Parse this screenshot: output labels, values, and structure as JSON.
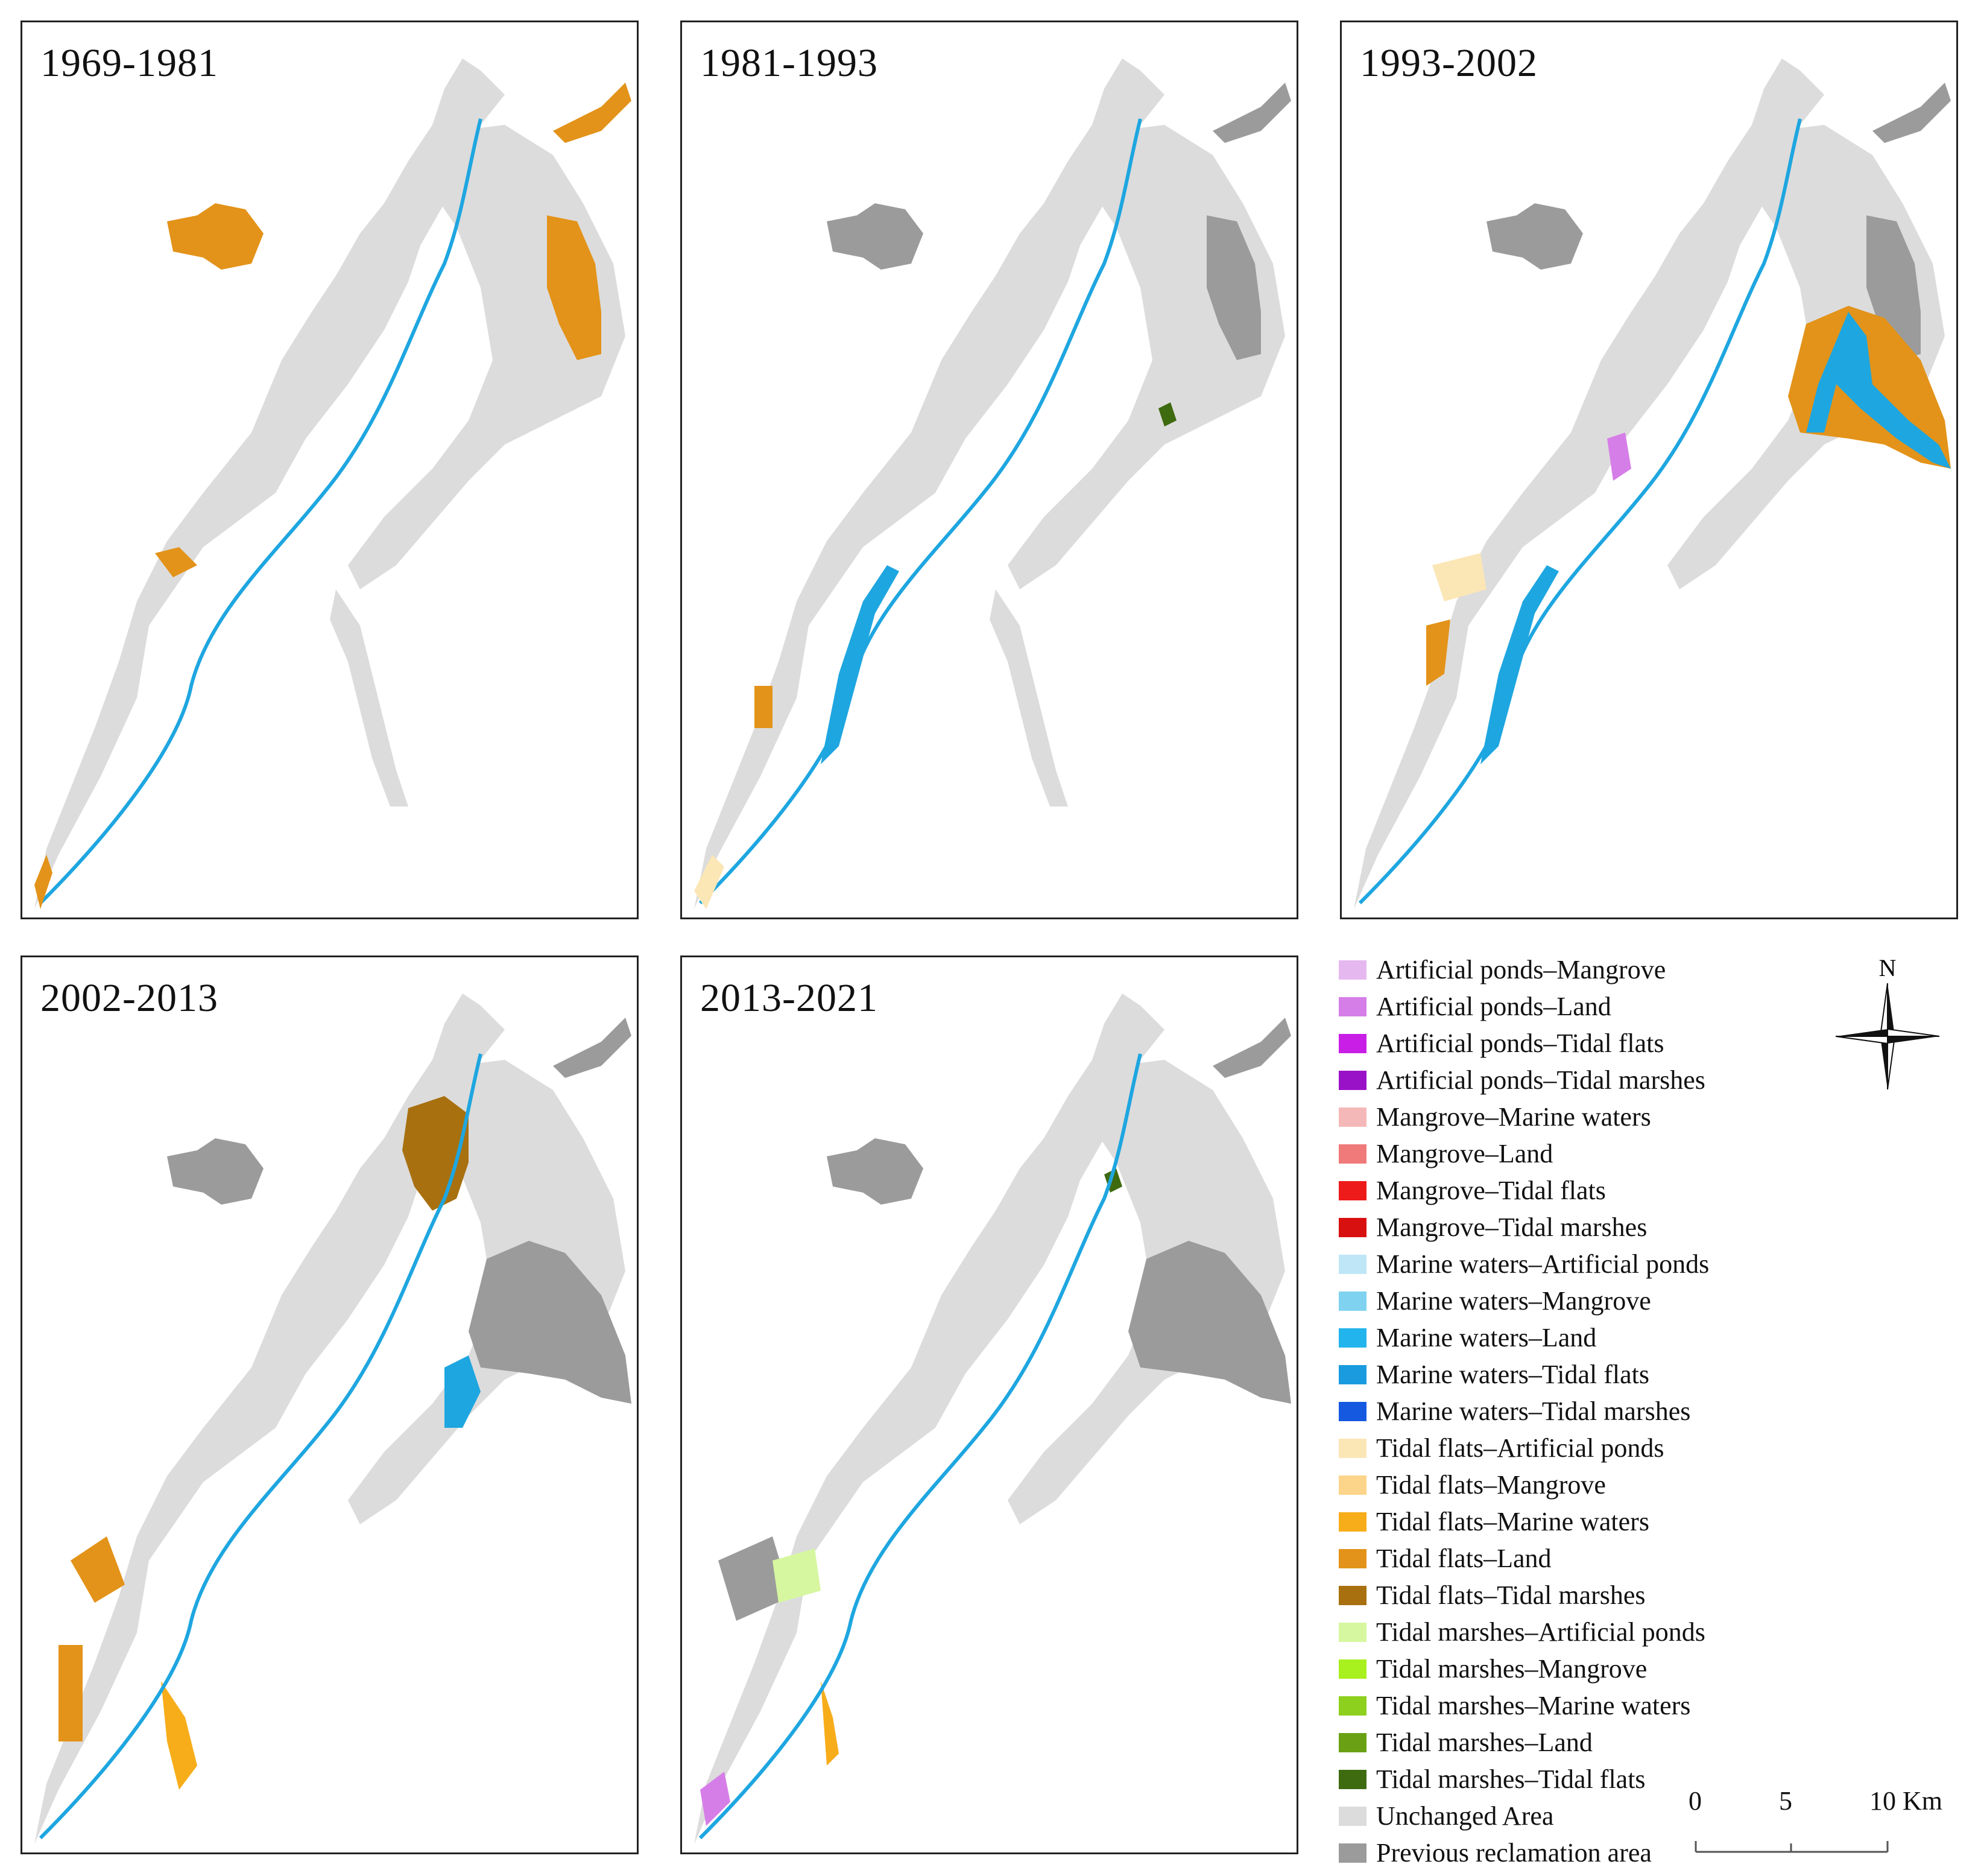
{
  "panels": [
    {
      "title": "1969-1981"
    },
    {
      "title": "1981-1993"
    },
    {
      "title": "1993-2002"
    },
    {
      "title": "2002-2013"
    },
    {
      "title": "2013-2021"
    }
  ],
  "legend": [
    {
      "label": "Artificial ponds–Mangrove",
      "color": "#e6b8f0"
    },
    {
      "label": "Artificial ponds–Land",
      "color": "#d67ee8"
    },
    {
      "label": "Artificial ponds–Tidal flats",
      "color": "#c81ee6"
    },
    {
      "label": "Artificial ponds–Tidal marshes",
      "color": "#9a12c8"
    },
    {
      "label": "Mangrove–Marine waters",
      "color": "#f5b8b8"
    },
    {
      "label": "Mangrove–Land",
      "color": "#f07a7a"
    },
    {
      "label": "Mangrove–Tidal flats",
      "color": "#ee1b1b"
    },
    {
      "label": "Mangrove–Tidal marshes",
      "color": "#d81010"
    },
    {
      "label": "Marine waters–Artificial ponds",
      "color": "#bfe6f7"
    },
    {
      "label": "Marine waters–Mangrove",
      "color": "#7fd2f0"
    },
    {
      "label": "Marine waters–Land",
      "color": "#22b4ec"
    },
    {
      "label": "Marine waters–Tidal flats",
      "color": "#1a9be0"
    },
    {
      "label": "Marine waters–Tidal marshes",
      "color": "#1559e0"
    },
    {
      "label": "Tidal flats–Artificial ponds",
      "color": "#fbe6b6"
    },
    {
      "label": "Tidal flats–Mangrove",
      "color": "#fcd48a"
    },
    {
      "label": "Tidal flats–Marine waters",
      "color": "#f7ad1a"
    },
    {
      "label": "Tidal flats–Land",
      "color": "#e39319"
    },
    {
      "label": "Tidal flats–Tidal marshes",
      "color": "#a8700f"
    },
    {
      "label": "Tidal marshes–Artificial ponds",
      "color": "#d6f7a0"
    },
    {
      "label": "Tidal marshes–Mangrove",
      "color": "#a8f01e"
    },
    {
      "label": "Tidal marshes–Marine waters",
      "color": "#8ed01e"
    },
    {
      "label": "Tidal marshes–Land",
      "color": "#6aa114"
    },
    {
      "label": "Tidal marshes–Tidal flats",
      "color": "#3e6a10"
    },
    {
      "label": "Unchanged Area",
      "color": "#dcdcdc"
    },
    {
      "label": "Previous reclamation area",
      "color": "#9b9b9b"
    }
  ],
  "north_label": "N",
  "scale": {
    "labels": [
      "0",
      "5",
      "10 Km"
    ]
  },
  "map_colors": {
    "unchanged": "#dcdcdc",
    "previous": "#9b9b9b",
    "water": "#1ea6e0",
    "land": "#e39319",
    "marsh": "#a8700f",
    "flats_ponds": "#fbe6b6",
    "ponds_land": "#d67ee8",
    "marsh_green": "#3e6a10",
    "marsh_light": "#d6f7a0",
    "flats_water": "#f7ad1a"
  }
}
